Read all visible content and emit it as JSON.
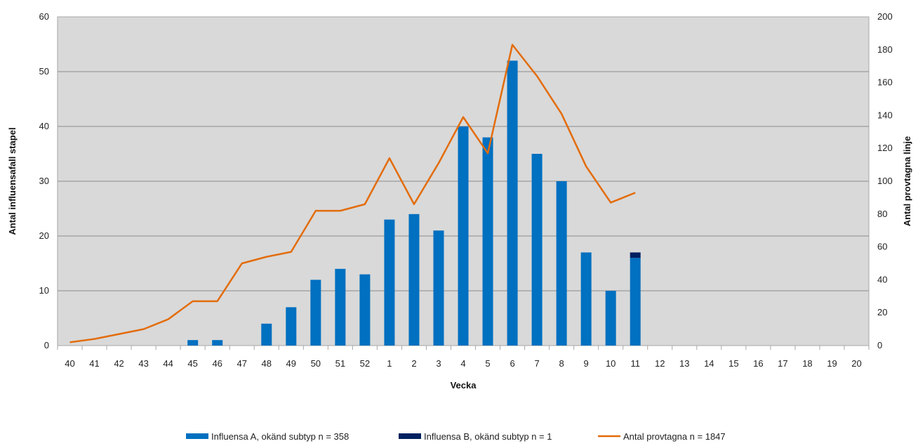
{
  "chart_data": {
    "type": "bar",
    "categories": [
      "40",
      "41",
      "42",
      "43",
      "44",
      "45",
      "46",
      "47",
      "48",
      "49",
      "50",
      "51",
      "52",
      "1",
      "2",
      "3",
      "4",
      "5",
      "6",
      "7",
      "8",
      "9",
      "10",
      "11",
      "12",
      "13",
      "14",
      "15",
      "16",
      "17",
      "18",
      "19",
      "20"
    ],
    "xlabel": "Vecka",
    "ylabel": "Antal influensafall stapel",
    "y2label": "Antal provtagna linje",
    "ylim": [
      0,
      60
    ],
    "y2lim": [
      0,
      200
    ],
    "yticks": [
      0,
      10,
      20,
      30,
      40,
      50,
      60
    ],
    "y2ticks": [
      0,
      20,
      40,
      60,
      80,
      100,
      120,
      140,
      160,
      180,
      200
    ],
    "grid": true,
    "stacked": true,
    "legend_position": "bottom",
    "series": [
      {
        "name": "Influensa A, okänd subtyp n = 358",
        "type": "bar",
        "axis": "left",
        "color": "#0070C0",
        "values": [
          0,
          0,
          0,
          0,
          0,
          1,
          1,
          0,
          4,
          7,
          12,
          14,
          13,
          23,
          24,
          21,
          40,
          38,
          52,
          35,
          30,
          17,
          10,
          16,
          null,
          null,
          null,
          null,
          null,
          null,
          null,
          null,
          null
        ]
      },
      {
        "name": "Influensa B, okänd subtyp n = 1",
        "type": "bar",
        "axis": "left",
        "color": "#002060",
        "values": [
          0,
          0,
          0,
          0,
          0,
          0,
          0,
          0,
          0,
          0,
          0,
          0,
          0,
          0,
          0,
          0,
          0,
          0,
          0,
          0,
          0,
          0,
          0,
          1,
          null,
          null,
          null,
          null,
          null,
          null,
          null,
          null,
          null
        ]
      },
      {
        "name": "Antal provtagna  n = 1847",
        "type": "line",
        "axis": "right",
        "color": "#E36C0A",
        "values": [
          2,
          4,
          7,
          10,
          16,
          27,
          27,
          50,
          54,
          57,
          82,
          82,
          86,
          114,
          86,
          111,
          139,
          117,
          183,
          164,
          141,
          109,
          87,
          93,
          null,
          null,
          null,
          null,
          null,
          null,
          null,
          null,
          null
        ]
      }
    ]
  }
}
